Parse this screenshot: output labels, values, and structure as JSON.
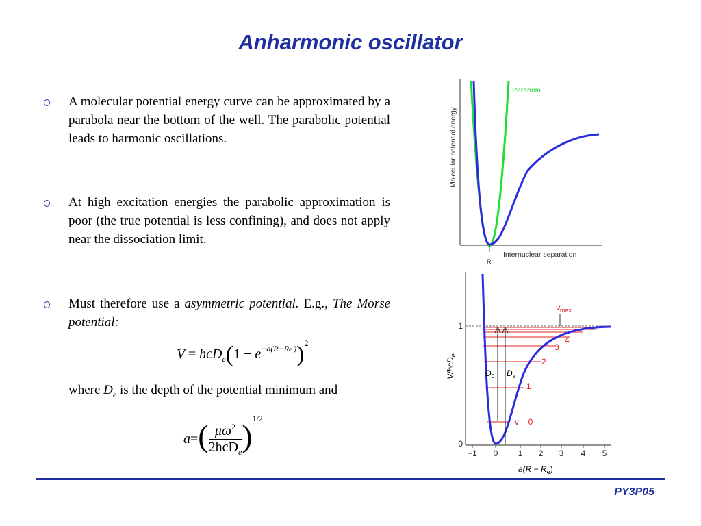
{
  "title": "Anharmonic oscillator",
  "bullets": [
    {
      "text": "A molecular potential energy curve can be approximated by a parabola near the bottom of the well. The parabolic potential leads to harmonic oscillations."
    },
    {
      "text": "At high excitation energies the parabolic approximation is poor (the true potential is less confining), and does not apply near the dissociation limit."
    },
    {
      "segments": [
        "Must therefore use a",
        "asymmetric potential.",
        "E.g.,",
        "The Morse potential:"
      ]
    }
  ],
  "formula1": {
    "lhs": "V",
    "eq": "=",
    "hcd": "hcD",
    "sub": "e",
    "lparen": "(",
    "one_minus": "1 −",
    "e": "e",
    "exponent": "−a(R−R",
    "exp_sub": "e",
    "exp_close": ")",
    "rparen": ")",
    "power": "2"
  },
  "where": {
    "text1": "where",
    "d": "D",
    "sub": "e",
    "text2": "is the depth of the potential minimum and"
  },
  "formula2": {
    "lhs": "a",
    "eq": "=",
    "lparen": "(",
    "num": "μω",
    "num_power": "2",
    "den": "2hcD",
    "den_sub": "e",
    "rparen": ")",
    "power": "1/2"
  },
  "figure1": {
    "curve_label": "Parabola",
    "y_axis": "Molecular potential energy",
    "x_axis": "Internuclear separation",
    "re": "R"
  },
  "figure2": {
    "y_axis": "V/hcD",
    "y_axis_sub": "e",
    "x_axis": "a(R − R",
    "x_axis_sub": "e",
    "x_axis_close": ")",
    "yticks": [
      "1",
      "0"
    ],
    "xticks": [
      "−1",
      "0",
      "1",
      "2",
      "3",
      "4",
      "5"
    ],
    "vmax": "v",
    "vmax_sub": "max",
    "levels": [
      "v = 0",
      "1",
      "2",
      "3",
      "4"
    ],
    "d0": "D",
    "d0_sub": "0",
    "de": "D",
    "de_sub": "e"
  },
  "footer": "PY3P05"
}
